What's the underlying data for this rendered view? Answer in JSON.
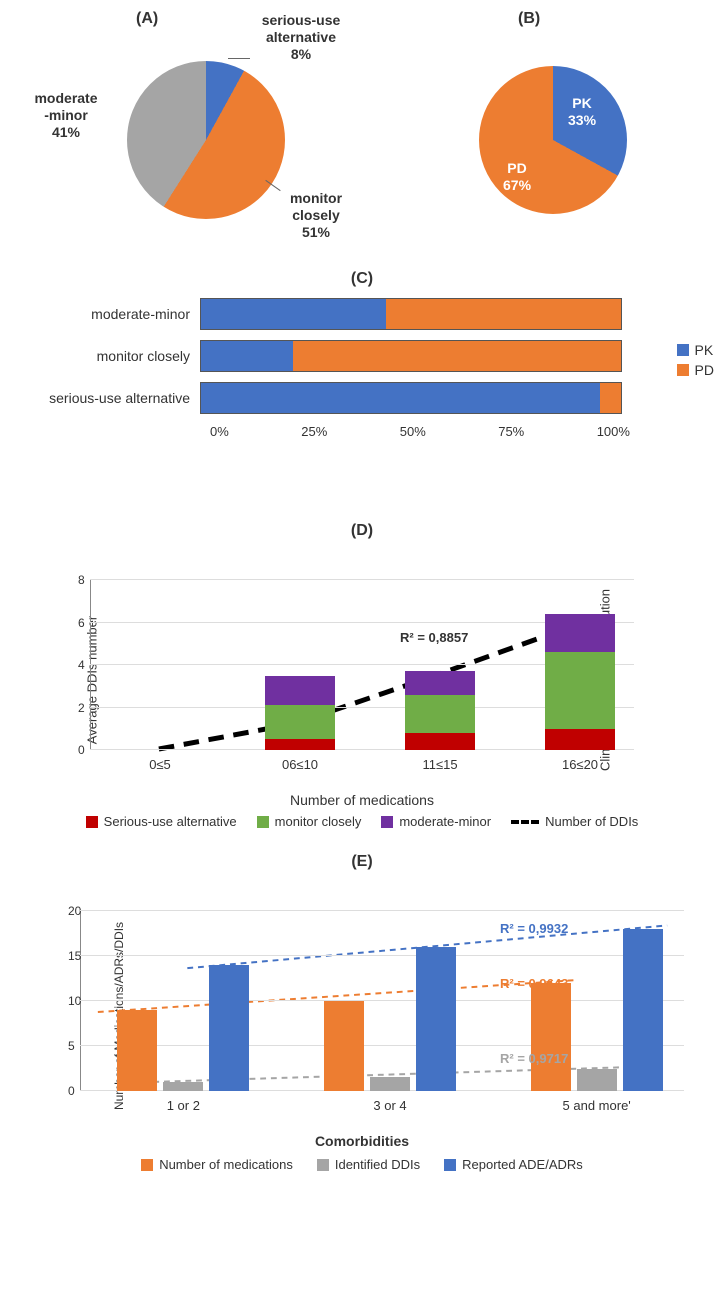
{
  "colors": {
    "orange": "#ed7d31",
    "blue": "#4472c4",
    "grey": "#a5a5a5",
    "green": "#70ad47",
    "purple": "#7030a0",
    "red": "#c00000",
    "blue2": "#4472c4",
    "black": "#000000",
    "white": "#ffffff"
  },
  "panelA": {
    "label": "(A)",
    "type": "pie",
    "slices": [
      {
        "name": "serious-use alternative",
        "pct": 8,
        "color": "#4472c4",
        "label": "serious-use\nalternative\n8%"
      },
      {
        "name": "monitor closely",
        "pct": 51,
        "color": "#ed7d31",
        "label": "monitor\nclosely\n51%"
      },
      {
        "name": "moderate-minor",
        "pct": 41,
        "color": "#a5a5a5",
        "label": "moderate\n-minor\n41%"
      }
    ],
    "diameter": 160
  },
  "panelB": {
    "label": "(B)",
    "type": "pie",
    "slices": [
      {
        "name": "PK",
        "pct": 33,
        "color": "#4472c4",
        "label": "PK\n33%"
      },
      {
        "name": "PD",
        "pct": 67,
        "color": "#ed7d31",
        "label": "PD\n67%"
      }
    ],
    "diameter": 150
  },
  "panelC": {
    "label": "(C)",
    "type": "stacked_bar_horizontal",
    "axis": {
      "ticks": [
        "0%",
        "25%",
        "50%",
        "75%",
        "100%"
      ]
    },
    "legend": [
      {
        "label": "PK",
        "color": "#4472c4"
      },
      {
        "label": "PD",
        "color": "#ed7d31"
      }
    ],
    "rows": [
      {
        "label": "moderate-minor",
        "segments": [
          {
            "key": "PK",
            "pct": 44,
            "color": "#4472c4"
          },
          {
            "key": "PD",
            "pct": 56,
            "color": "#ed7d31"
          }
        ]
      },
      {
        "label": "monitor closely",
        "segments": [
          {
            "key": "PK",
            "pct": 22,
            "color": "#4472c4"
          },
          {
            "key": "PD",
            "pct": 78,
            "color": "#ed7d31"
          }
        ]
      },
      {
        "label": "serious-use alternative",
        "segments": [
          {
            "key": "PK",
            "pct": 95,
            "color": "#4472c4"
          },
          {
            "key": "PD",
            "pct": 5,
            "color": "#ed7d31"
          }
        ]
      }
    ]
  },
  "panelD": {
    "label": "(D)",
    "type": "stacked_bar_with_trend",
    "ylabel_left": "Average DDIs number",
    "ylabel_right": "Clinical Significance distribution",
    "xlabel": "Number of medications",
    "ymax": 8,
    "yticks": [
      0,
      2,
      4,
      6,
      8
    ],
    "categories": [
      "0≤5",
      "06≤10",
      "11≤15",
      "16≤20"
    ],
    "stacks": [
      {
        "serious": 0,
        "monitor": 0,
        "moderate": 0
      },
      {
        "serious": 0.5,
        "monitor": 1.6,
        "moderate": 1.4
      },
      {
        "serious": 0.8,
        "monitor": 1.8,
        "moderate": 1.1
      },
      {
        "serious": 1.0,
        "monitor": 3.6,
        "moderate": 1.8
      }
    ],
    "stack_colors": {
      "serious": "#c00000",
      "monitor": "#70ad47",
      "moderate": "#7030a0"
    },
    "trend": {
      "label": "Number of DDIs",
      "r2": "R² = 0,8857",
      "points": [
        0,
        1.2,
        3.4,
        5.7
      ],
      "color": "#000000"
    },
    "legend": [
      {
        "label": "Serious-use alternative",
        "color": "#c00000",
        "type": "swatch"
      },
      {
        "label": "monitor closely",
        "color": "#70ad47",
        "type": "swatch"
      },
      {
        "label": "moderate-minor",
        "color": "#7030a0",
        "type": "swatch"
      },
      {
        "label": "Number of DDIs",
        "color": "#000000",
        "type": "dashline"
      }
    ]
  },
  "panelE": {
    "label": "(E)",
    "type": "grouped_bar_with_trends",
    "ylabel": "Number of Medications/ADRs/DDIs",
    "xlabel": "Comorbidities",
    "ymax": 20,
    "yticks": [
      0,
      5,
      10,
      15,
      20
    ],
    "categories": [
      "1 or 2",
      "3 or 4",
      "5 and more'"
    ],
    "series": [
      {
        "key": "medications",
        "label": "Number of medications",
        "color": "#ed7d31",
        "values": [
          9,
          10,
          12
        ],
        "r2": "R² = 0,9643",
        "r2color": "#ed7d31"
      },
      {
        "key": "ddis",
        "label": "Identified DDIs",
        "color": "#a5a5a5",
        "values": [
          1,
          1.6,
          2.4
        ],
        "r2": "R² = 0,9717",
        "r2color": "#a5a5a5"
      },
      {
        "key": "ade",
        "label": "Reported ADE/ADRs",
        "color": "#4472c4",
        "values": [
          14,
          16,
          18
        ],
        "r2": "R² = 0,9932",
        "r2color": "#4472c4"
      }
    ]
  }
}
